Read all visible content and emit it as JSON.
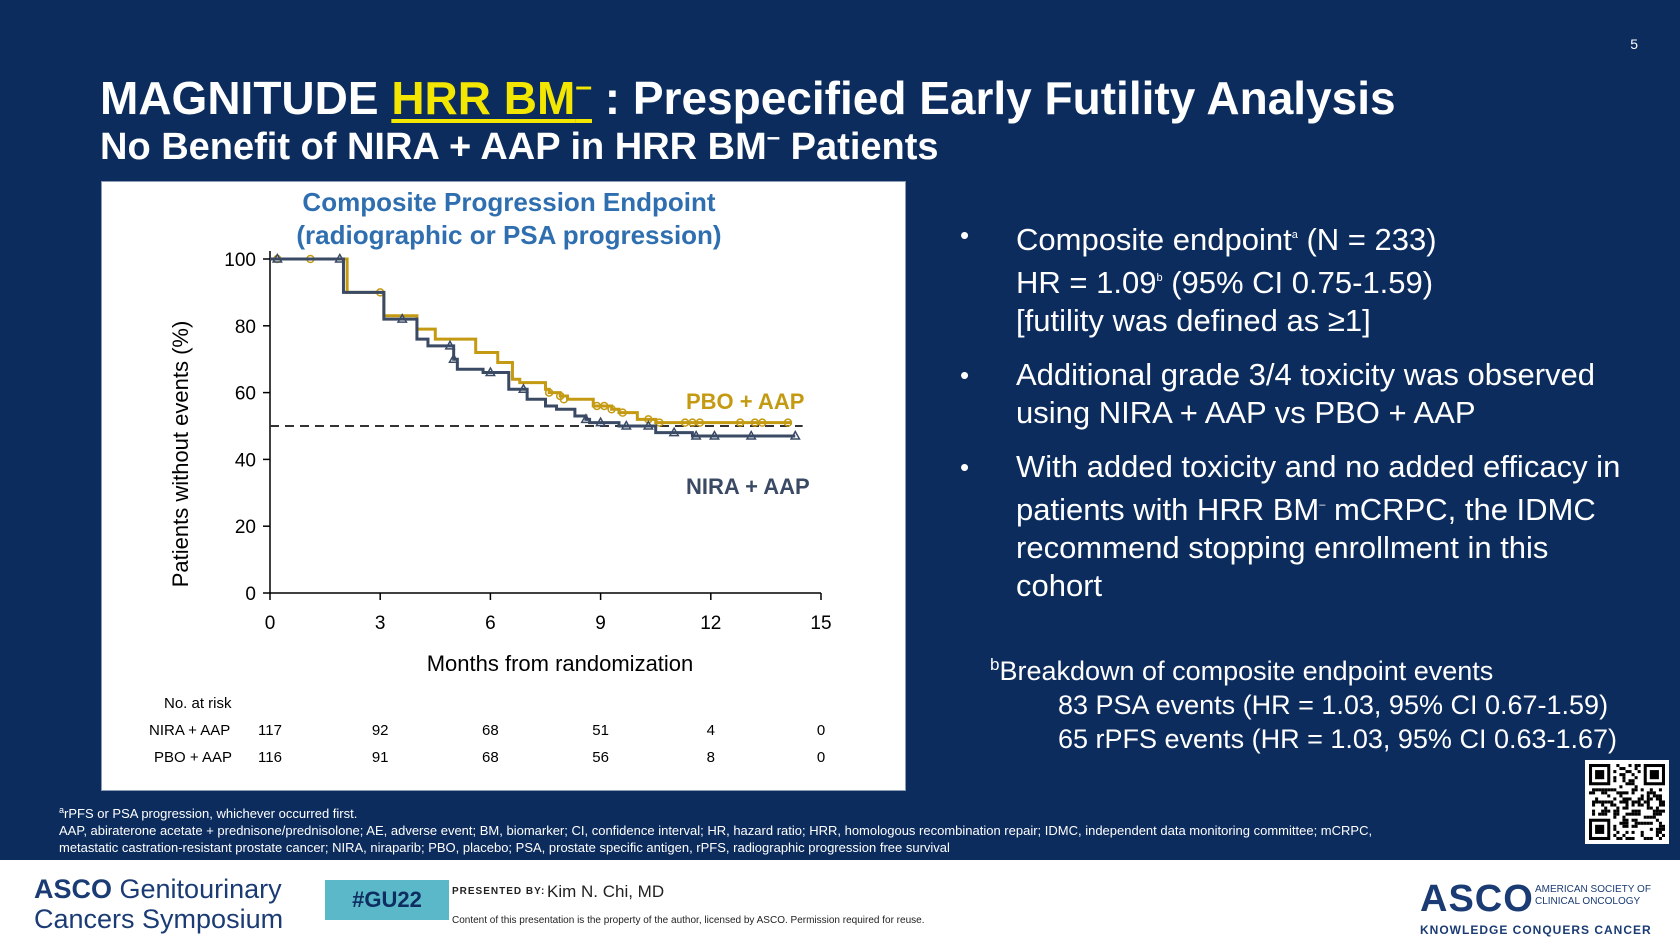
{
  "slide_number": "5",
  "title": {
    "prefix": "MAGNITUDE ",
    "highlight": "HRR BM",
    "highlight_sup": "–",
    "suffix": " : Prespecified Early Futility Analysis"
  },
  "subtitle": {
    "text1": "No Benefit of NIRA + AAP in HRR BM",
    "sup": "–",
    "text2": " Patients"
  },
  "chart_data": {
    "type": "line",
    "title_line1": "Composite Progression Endpoint",
    "title_line2": "(radiographic or PSA progression)",
    "xlabel": "Months from randomization",
    "ylabel": "Patients without events (%)",
    "xlim": [
      0,
      15
    ],
    "ylim": [
      0,
      100
    ],
    "xticks": [
      0,
      3,
      6,
      9,
      12,
      15
    ],
    "yticks": [
      0,
      20,
      40,
      60,
      80,
      100
    ],
    "reference_line": {
      "y": 50,
      "style": "dashed"
    },
    "series": [
      {
        "name": "PBO + AAP",
        "color": "#c49a12",
        "marker": "circle",
        "points": [
          [
            0,
            100
          ],
          [
            2.0,
            100
          ],
          [
            2.1,
            90
          ],
          [
            3.0,
            90
          ],
          [
            3.1,
            83
          ],
          [
            3.8,
            83
          ],
          [
            4.0,
            79
          ],
          [
            4.3,
            79
          ],
          [
            4.5,
            76
          ],
          [
            5.4,
            76
          ],
          [
            5.6,
            72
          ],
          [
            6.0,
            72
          ],
          [
            6.2,
            69
          ],
          [
            6.4,
            69
          ],
          [
            6.6,
            64
          ],
          [
            6.8,
            63
          ],
          [
            7.3,
            63
          ],
          [
            7.5,
            61
          ],
          [
            7.6,
            60
          ],
          [
            7.9,
            59
          ],
          [
            8.1,
            58
          ],
          [
            8.6,
            58
          ],
          [
            8.8,
            56
          ],
          [
            9.1,
            56
          ],
          [
            9.3,
            55
          ],
          [
            9.5,
            54
          ],
          [
            9.8,
            54
          ],
          [
            10.0,
            52
          ],
          [
            10.4,
            52
          ],
          [
            10.5,
            51
          ],
          [
            11.0,
            51
          ],
          [
            11.4,
            51
          ],
          [
            12.5,
            51
          ],
          [
            13.6,
            51
          ],
          [
            14.2,
            51
          ]
        ],
        "censors": [
          [
            0.2,
            100
          ],
          [
            1.1,
            100
          ],
          [
            3.0,
            90
          ],
          [
            7.6,
            60
          ],
          [
            7.9,
            59
          ],
          [
            8.0,
            58
          ],
          [
            8.9,
            56
          ],
          [
            9.1,
            56
          ],
          [
            9.3,
            55
          ],
          [
            9.6,
            54
          ],
          [
            10.3,
            52
          ],
          [
            10.6,
            51
          ],
          [
            11.3,
            51
          ],
          [
            11.5,
            51
          ],
          [
            11.7,
            51
          ],
          [
            12.8,
            51
          ],
          [
            13.2,
            51
          ],
          [
            13.4,
            51
          ],
          [
            14.1,
            51
          ]
        ]
      },
      {
        "name": "NIRA + AAP",
        "color": "#3a4a65",
        "marker": "triangle",
        "points": [
          [
            0,
            100
          ],
          [
            1.9,
            100
          ],
          [
            2.0,
            90
          ],
          [
            3.0,
            90
          ],
          [
            3.1,
            82
          ],
          [
            3.7,
            82
          ],
          [
            4.0,
            76
          ],
          [
            4.3,
            74
          ],
          [
            4.7,
            74
          ],
          [
            5.0,
            70
          ],
          [
            5.1,
            67
          ],
          [
            5.6,
            67
          ],
          [
            5.8,
            66
          ],
          [
            6.3,
            66
          ],
          [
            6.5,
            61
          ],
          [
            6.9,
            61
          ],
          [
            7.0,
            58
          ],
          [
            7.3,
            58
          ],
          [
            7.5,
            56
          ],
          [
            7.8,
            55
          ],
          [
            8.3,
            53
          ],
          [
            8.6,
            52
          ],
          [
            8.7,
            51
          ],
          [
            9.3,
            51
          ],
          [
            9.5,
            50
          ],
          [
            10.3,
            50
          ],
          [
            10.5,
            48
          ],
          [
            11.4,
            48
          ],
          [
            11.5,
            47
          ],
          [
            12.4,
            47
          ],
          [
            14.3,
            47
          ]
        ],
        "censors": [
          [
            0.2,
            100
          ],
          [
            1.9,
            100
          ],
          [
            3.6,
            82
          ],
          [
            4.9,
            74
          ],
          [
            5.0,
            70
          ],
          [
            6.0,
            66
          ],
          [
            6.9,
            61
          ],
          [
            8.6,
            52
          ],
          [
            9.0,
            51
          ],
          [
            9.7,
            50
          ],
          [
            10.3,
            50
          ],
          [
            11.0,
            48
          ],
          [
            11.6,
            47
          ],
          [
            12.1,
            47
          ],
          [
            13.1,
            47
          ],
          [
            14.3,
            47
          ]
        ]
      }
    ],
    "risk_table": {
      "header": "No. at risk",
      "times": [
        0,
        3,
        6,
        9,
        12,
        15
      ],
      "rows": [
        {
          "label": "NIRA + AAP",
          "values": [
            "117",
            "92",
            "68",
            "51",
            "4",
            "0"
          ]
        },
        {
          "label": "PBO + AAP",
          "values": [
            "116",
            "91",
            "68",
            "56",
            "8",
            "0"
          ]
        }
      ]
    }
  },
  "bullets": {
    "b1_l1a": "Composite endpoint",
    "b1_l1sup": "a",
    "b1_l1b": " (N = 233)",
    "b1_l2a": "HR = 1.09",
    "b1_l2sup": "b",
    "b1_l2b": " (95% CI 0.75-1.59)",
    "b1_l3": "[futility was defined as ≥1]",
    "b2": "Additional grade 3/4 toxicity was observed using NIRA + AAP vs PBO + AAP",
    "b3a": "With added toxicity and no added efficacy in patients with HRR BM",
    "b3sup": "–",
    "b3b": " mCRPC, the IDMC recommend stopping enrollment in this cohort",
    "bullet_char": "•"
  },
  "breakdown": {
    "sup": "b",
    "heading": "Breakdown of composite endpoint events",
    "line1": "83 PSA events (HR = 1.03, 95% CI 0.67-1.59)",
    "line2": "65 rPFS events (HR = 1.03, 95% CI 0.63-1.67)"
  },
  "footnotes": {
    "sup": "a",
    "line1": "rPFS or PSA progression, whichever occurred first.",
    "line2": "AAP, abiraterone acetate + prednisone/prednisolone; AE, adverse event; BM, biomarker; CI, confidence interval; HR, hazard ratio; HRR, homologous recombination repair; IDMC, independent data monitoring committee; mCRPC, metastatic castration-resistant prostate cancer; NIRA, niraparib; PBO, placebo; PSA, prostate specific antigen, rPFS, radiographic progression free survival"
  },
  "footer": {
    "asco_word": "ASCO",
    "gu_word": " Genitourinary",
    "line2": "Cancers Symposium",
    "hashtag": "#GU22",
    "presented_by": "PRESENTED BY:",
    "presenter": "Kim N. Chi, MD",
    "property_notice": "Content of this presentation is the property of the author, licensed by ASCO. Permission required for reuse.",
    "asco_logo": "ASCO",
    "society_line1": "AMERICAN SOCIETY OF",
    "society_line2": "CLINICAL ONCOLOGY",
    "tagline": "KNOWLEDGE CONQUERS CANCER"
  },
  "colors": {
    "background": "#0c2c5e",
    "title_highlight": "#f3e600",
    "chart_title": "#2f6fb0"
  }
}
